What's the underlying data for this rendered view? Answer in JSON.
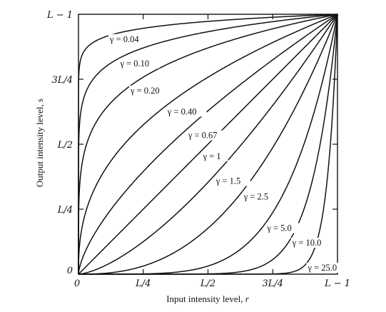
{
  "chart_data": {
    "type": "line",
    "xlabel_main": "Input intensity level, ",
    "xlabel_var": "r",
    "ylabel": "Output intensity level, s",
    "xlim": [
      0,
      1
    ],
    "ylim": [
      0,
      1
    ],
    "x_ticks": [
      {
        "value": 0,
        "label": "0"
      },
      {
        "value": 0.25,
        "label": "L/4"
      },
      {
        "value": 0.5,
        "label": "L/2"
      },
      {
        "value": 0.75,
        "label": "3L/4"
      },
      {
        "value": 1,
        "label": "L − 1"
      }
    ],
    "y_ticks": [
      {
        "value": 0,
        "label": "0"
      },
      {
        "value": 0.25,
        "label": "L/4"
      },
      {
        "value": 0.5,
        "label": "L/2"
      },
      {
        "value": 0.75,
        "label": "3L/4"
      },
      {
        "value": 1,
        "label": "L − 1"
      }
    ],
    "series": [
      {
        "gamma": 0.04,
        "label": "γ = 0.04"
      },
      {
        "gamma": 0.1,
        "label": "γ = 0.10"
      },
      {
        "gamma": 0.2,
        "label": "γ = 0.20"
      },
      {
        "gamma": 0.4,
        "label": "γ = 0.40"
      },
      {
        "gamma": 0.67,
        "label": "γ = 0.67"
      },
      {
        "gamma": 1,
        "label": "γ = 1"
      },
      {
        "gamma": 1.5,
        "label": "γ = 1.5"
      },
      {
        "gamma": 2.5,
        "label": "γ = 2.5"
      },
      {
        "gamma": 5.0,
        "label": "γ = 5.0"
      },
      {
        "gamma": 10.0,
        "label": "γ = 10.0"
      },
      {
        "gamma": 25.0,
        "label": "γ = 25.0"
      }
    ],
    "grid": false,
    "legend": "none"
  }
}
